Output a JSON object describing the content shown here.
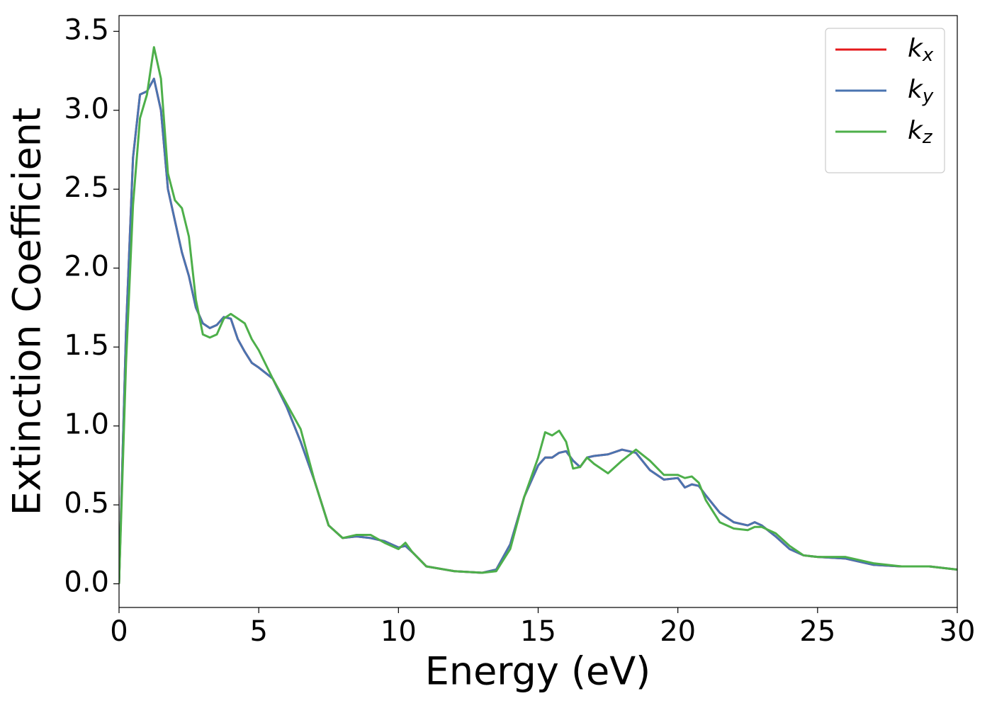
{
  "chart_data": {
    "type": "line",
    "xlabel": "Energy (eV)",
    "ylabel": "Extinction Coefficient",
    "xlim": [
      0,
      30
    ],
    "ylim": [
      -0.15,
      3.6
    ],
    "xticks": [
      0,
      5,
      10,
      15,
      20,
      25,
      30
    ],
    "yticks": [
      {
        "value": 0,
        "label": "0.0"
      },
      0.5,
      {
        "value": 1,
        "label": "1.0"
      },
      1.5,
      {
        "value": 2,
        "label": "2.0"
      },
      2.5,
      {
        "value": 3,
        "label": "3.0"
      },
      3.5
    ],
    "grid": false,
    "legend": "upper right",
    "x": [
      0,
      0.25,
      0.5,
      0.75,
      1.0,
      1.25,
      1.5,
      1.75,
      2,
      2.25,
      2.5,
      2.75,
      3,
      3.25,
      3.5,
      3.75,
      4,
      4.25,
      4.5,
      4.75,
      5,
      5.5,
      6,
      6.5,
      7,
      7.5,
      8,
      8.5,
      9,
      9.5,
      10,
      10.25,
      10.5,
      11,
      12,
      13,
      13.5,
      14,
      14.5,
      15,
      15.25,
      15.5,
      15.75,
      16,
      16.25,
      16.5,
      16.75,
      17,
      17.5,
      18,
      18.5,
      19,
      19.5,
      20,
      20.25,
      20.5,
      20.75,
      21,
      21.5,
      22,
      22.5,
      22.75,
      23,
      23.5,
      24,
      24.5,
      25,
      26,
      27,
      28,
      29,
      30
    ],
    "series": [
      {
        "name": "kx",
        "color": "#e41a1c",
        "values": [
          0,
          1.6,
          2.7,
          3.1,
          3.12,
          3.2,
          3.0,
          2.5,
          2.3,
          2.1,
          1.95,
          1.75,
          1.65,
          1.62,
          1.64,
          1.69,
          1.68,
          1.55,
          1.47,
          1.4,
          1.37,
          1.3,
          1.12,
          0.9,
          0.65,
          0.37,
          0.29,
          0.3,
          0.29,
          0.27,
          0.23,
          0.24,
          0.2,
          0.11,
          0.08,
          0.07,
          0.09,
          0.25,
          0.55,
          0.75,
          0.8,
          0.8,
          0.83,
          0.84,
          0.78,
          0.74,
          0.8,
          0.81,
          0.82,
          0.85,
          0.83,
          0.72,
          0.66,
          0.67,
          0.61,
          0.63,
          0.62,
          0.56,
          0.45,
          0.39,
          0.37,
          0.39,
          0.37,
          0.3,
          0.22,
          0.18,
          0.17,
          0.16,
          0.12,
          0.11,
          0.11,
          0.09
        ]
      },
      {
        "name": "ky",
        "color": "#4a74b0",
        "values": [
          0,
          1.6,
          2.7,
          3.1,
          3.12,
          3.2,
          3.0,
          2.5,
          2.3,
          2.1,
          1.95,
          1.75,
          1.65,
          1.62,
          1.64,
          1.69,
          1.68,
          1.55,
          1.47,
          1.4,
          1.37,
          1.3,
          1.12,
          0.9,
          0.65,
          0.37,
          0.29,
          0.3,
          0.29,
          0.27,
          0.23,
          0.24,
          0.2,
          0.11,
          0.08,
          0.07,
          0.09,
          0.25,
          0.55,
          0.75,
          0.8,
          0.8,
          0.83,
          0.84,
          0.78,
          0.74,
          0.8,
          0.81,
          0.82,
          0.85,
          0.83,
          0.72,
          0.66,
          0.67,
          0.61,
          0.63,
          0.62,
          0.56,
          0.45,
          0.39,
          0.37,
          0.39,
          0.37,
          0.3,
          0.22,
          0.18,
          0.17,
          0.16,
          0.12,
          0.11,
          0.11,
          0.09
        ]
      },
      {
        "name": "kz",
        "color": "#4daf4a",
        "values": [
          0,
          1.4,
          2.4,
          2.95,
          3.1,
          3.4,
          3.2,
          2.6,
          2.43,
          2.38,
          2.2,
          1.8,
          1.58,
          1.56,
          1.58,
          1.68,
          1.71,
          1.68,
          1.65,
          1.55,
          1.48,
          1.3,
          1.14,
          0.98,
          0.65,
          0.37,
          0.29,
          0.31,
          0.31,
          0.26,
          0.22,
          0.26,
          0.2,
          0.11,
          0.08,
          0.07,
          0.08,
          0.22,
          0.55,
          0.8,
          0.96,
          0.94,
          0.97,
          0.9,
          0.73,
          0.74,
          0.8,
          0.76,
          0.7,
          0.78,
          0.85,
          0.78,
          0.69,
          0.69,
          0.67,
          0.68,
          0.64,
          0.53,
          0.39,
          0.35,
          0.34,
          0.36,
          0.36,
          0.32,
          0.24,
          0.18,
          0.17,
          0.17,
          0.13,
          0.11,
          0.11,
          0.09
        ]
      }
    ]
  }
}
